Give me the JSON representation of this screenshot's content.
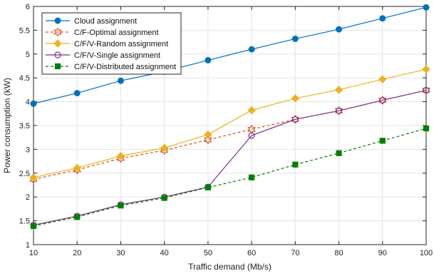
{
  "chart_data": {
    "type": "line",
    "title": "",
    "xlabel": "Traffic demand (Mb/s)",
    "ylabel": "Power consumption (kW)",
    "xlim": [
      10,
      100
    ],
    "ylim": [
      1,
      6
    ],
    "xticks": [
      10,
      20,
      30,
      40,
      50,
      60,
      70,
      80,
      90,
      100
    ],
    "yticks": [
      1,
      1.5,
      2,
      2.5,
      3,
      3.5,
      4,
      4.5,
      5,
      5.5,
      6
    ],
    "grid": true,
    "legend_position": "top-left",
    "x": [
      10,
      20,
      30,
      40,
      50,
      60,
      70,
      80,
      90,
      100
    ],
    "series": [
      {
        "name": "Cloud assignment",
        "color": "#0072BD",
        "marker": "circle-filled",
        "dash": "solid",
        "values": [
          3.96,
          4.18,
          4.44,
          4.63,
          4.87,
          5.1,
          5.32,
          5.52,
          5.75,
          5.98
        ]
      },
      {
        "name": "C/F-Optimal assignment",
        "color": "#D95319",
        "marker": "hexagram-open",
        "dash": "dashed",
        "values": [
          2.37,
          2.57,
          2.81,
          2.98,
          3.2,
          3.42,
          3.63,
          3.81,
          4.03,
          4.24
        ]
      },
      {
        "name": "C/F/V-Random assignment",
        "color": "#EDB120",
        "marker": "diamond-filled",
        "dash": "solid",
        "values": [
          2.41,
          2.61,
          2.86,
          3.03,
          3.31,
          3.82,
          4.07,
          4.25,
          4.47,
          4.68
        ]
      },
      {
        "name": "C/F/V-Single assignment",
        "color": "#7E2F8E",
        "marker": "circle-open",
        "dash": "solid",
        "values": [
          1.41,
          1.6,
          1.84,
          2.0,
          2.21,
          3.29,
          3.63,
          3.81,
          4.03,
          4.24
        ]
      },
      {
        "name": "C/F/V-Distributed assignment",
        "color": "#008000",
        "marker": "square-filled",
        "dash": "dashed",
        "values": [
          1.39,
          1.58,
          1.82,
          1.98,
          2.2,
          2.41,
          2.68,
          2.92,
          3.18,
          3.44
        ]
      }
    ]
  }
}
